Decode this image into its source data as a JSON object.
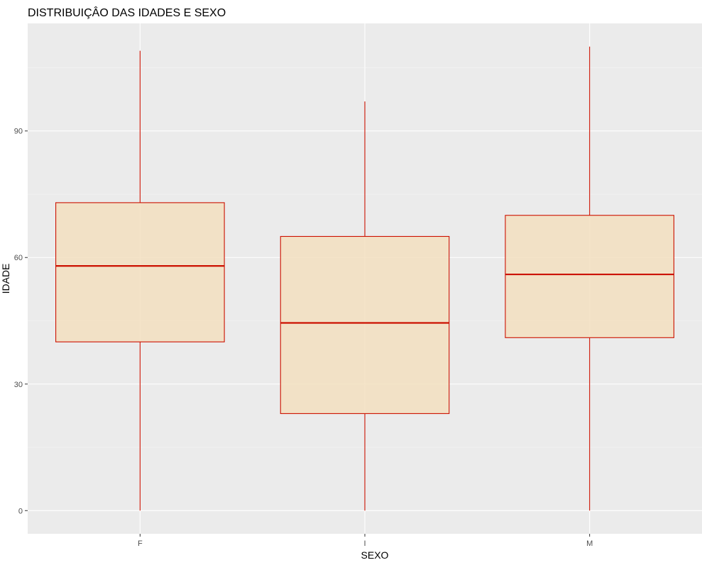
{
  "chart_data": {
    "type": "boxplot",
    "title": "DISTRIBUIÇÂO DAS IDADES E SEXO",
    "xlabel": "SEXO",
    "ylabel": "IDADE",
    "categories": [
      "F",
      "I",
      "M"
    ],
    "boxes": [
      {
        "category": "F",
        "min": 0,
        "q1": 40,
        "median": 58,
        "q3": 73,
        "max": 109
      },
      {
        "category": "I",
        "min": 0,
        "q1": 23,
        "median": 44.5,
        "q3": 65,
        "max": 97
      },
      {
        "category": "M",
        "min": 0,
        "q1": 41,
        "median": 56,
        "q3": 70,
        "max": 110
      }
    ],
    "yticks": [
      0,
      30,
      60,
      90
    ],
    "ylim": [
      -5.5,
      115.5
    ],
    "grid": true,
    "colors": {
      "panel_background": "#ebebeb",
      "grid_major": "#ffffff",
      "grid_minor": "#f5f5f5",
      "box_fill": "#f3dfbf",
      "box_stroke": "#cc1100",
      "tick_label": "#4d4d4d",
      "tick_mark": "#333333"
    }
  }
}
